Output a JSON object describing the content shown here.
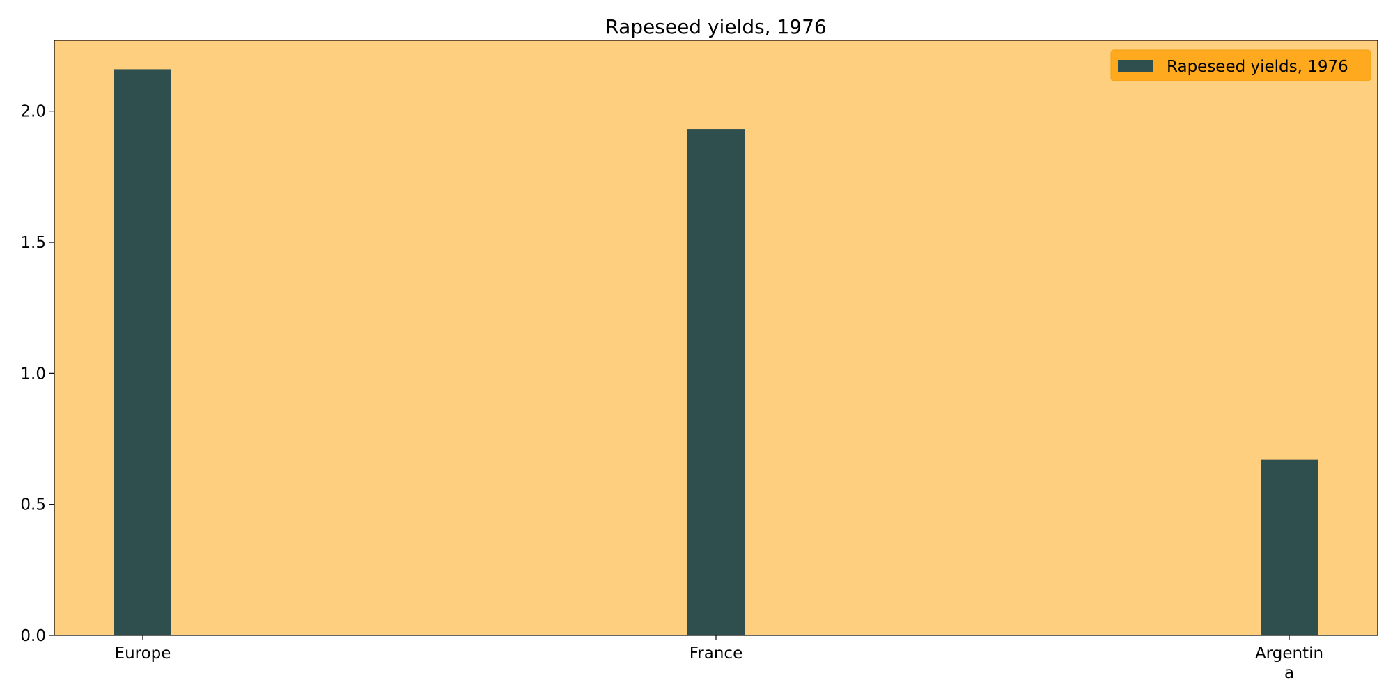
{
  "chart_data": {
    "type": "bar",
    "title": "Rapeseed yields, 1976",
    "xlabel": "",
    "ylabel": "",
    "categories": [
      [
        "Europe"
      ],
      [
        "France"
      ],
      [
        "Argentin",
        "a"
      ]
    ],
    "series": [
      {
        "name": "Rapeseed yields, 1976",
        "values": [
          2.16,
          1.93,
          0.67
        ]
      }
    ],
    "ylim": [
      0,
      2.27
    ],
    "yticks": [
      0.0,
      0.5,
      1.0,
      1.5,
      2.0
    ],
    "ytick_labels": [
      "0.0",
      "0.5",
      "1.0",
      "1.5",
      "2.0"
    ],
    "grid": false,
    "legend_position": "top-right",
    "colors": {
      "plot_background": "#fecf7f",
      "bar": "#2f4f4f",
      "legend_background": "#ffaa1e",
      "legend_border": "#f0a010",
      "axes": "#000000"
    }
  }
}
